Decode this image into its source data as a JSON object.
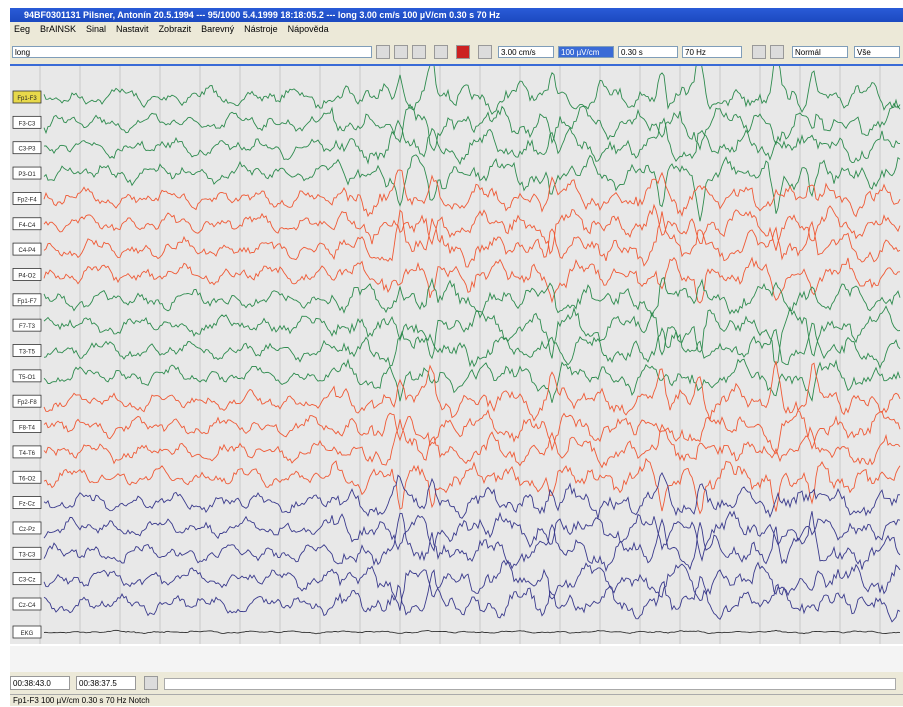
{
  "window": {
    "title": "94BF0301131 Pilsner, Antonín 20.5.1994 --- 95/1000 5.4.1999 18:18:05.2 --- long 3.00 cm/s 100 µV/cm 0.30 s 70 Hz"
  },
  "menu": {
    "items": [
      "Eeg",
      "BrAINSK",
      "Sinal",
      "Nastavit",
      "Zobrazit",
      "Barevný",
      "Nástroje",
      "Nápověda"
    ]
  },
  "toolbar": {
    "montage": "long",
    "speed": "3.00 cm/s",
    "sensitivity": "100 µV/cm",
    "time_constant": "0.30 s",
    "filter": "70 Hz",
    "mode": "Normál",
    "range": "Vše"
  },
  "channels": [
    {
      "label": "Fp1-F3",
      "color": "#2e8b4e"
    },
    {
      "label": "F3-C3",
      "color": "#2e8b4e"
    },
    {
      "label": "C3-P3",
      "color": "#2e8b4e"
    },
    {
      "label": "P3-O1",
      "color": "#2e8b4e"
    },
    {
      "label": "Fp2-F4",
      "color": "#ef5a36"
    },
    {
      "label": "F4-C4",
      "color": "#ef5a36"
    },
    {
      "label": "C4-P4",
      "color": "#ef5a36"
    },
    {
      "label": "P4-O2",
      "color": "#ef5a36"
    },
    {
      "label": "Fp1-F7",
      "color": "#2e8b4e"
    },
    {
      "label": "F7-T3",
      "color": "#2e8b4e"
    },
    {
      "label": "T3-T5",
      "color": "#2e8b4e"
    },
    {
      "label": "T5-O1",
      "color": "#2e8b4e"
    },
    {
      "label": "Fp2-F8",
      "color": "#ef5a36"
    },
    {
      "label": "F8-T4",
      "color": "#ef5a36"
    },
    {
      "label": "T4-T6",
      "color": "#ef5a36"
    },
    {
      "label": "T6-O2",
      "color": "#ef5a36"
    },
    {
      "label": "Fz-Cz",
      "color": "#3a3a8c"
    },
    {
      "label": "Cz-Pz",
      "color": "#3a3a8c"
    },
    {
      "label": "T3-C3",
      "color": "#3a3a8c"
    },
    {
      "label": "C3-Cz",
      "color": "#3a3a8c"
    },
    {
      "label": "Cz-C4",
      "color": "#3a3a8c"
    },
    {
      "label": "EKG",
      "color": "#333333"
    }
  ],
  "footer": {
    "times": [
      "00:38:43.0",
      "00:38:37.5"
    ]
  },
  "status": {
    "text": "Fp1-F3 100 µV/cm 0.30 s 70 Hz Notch"
  }
}
